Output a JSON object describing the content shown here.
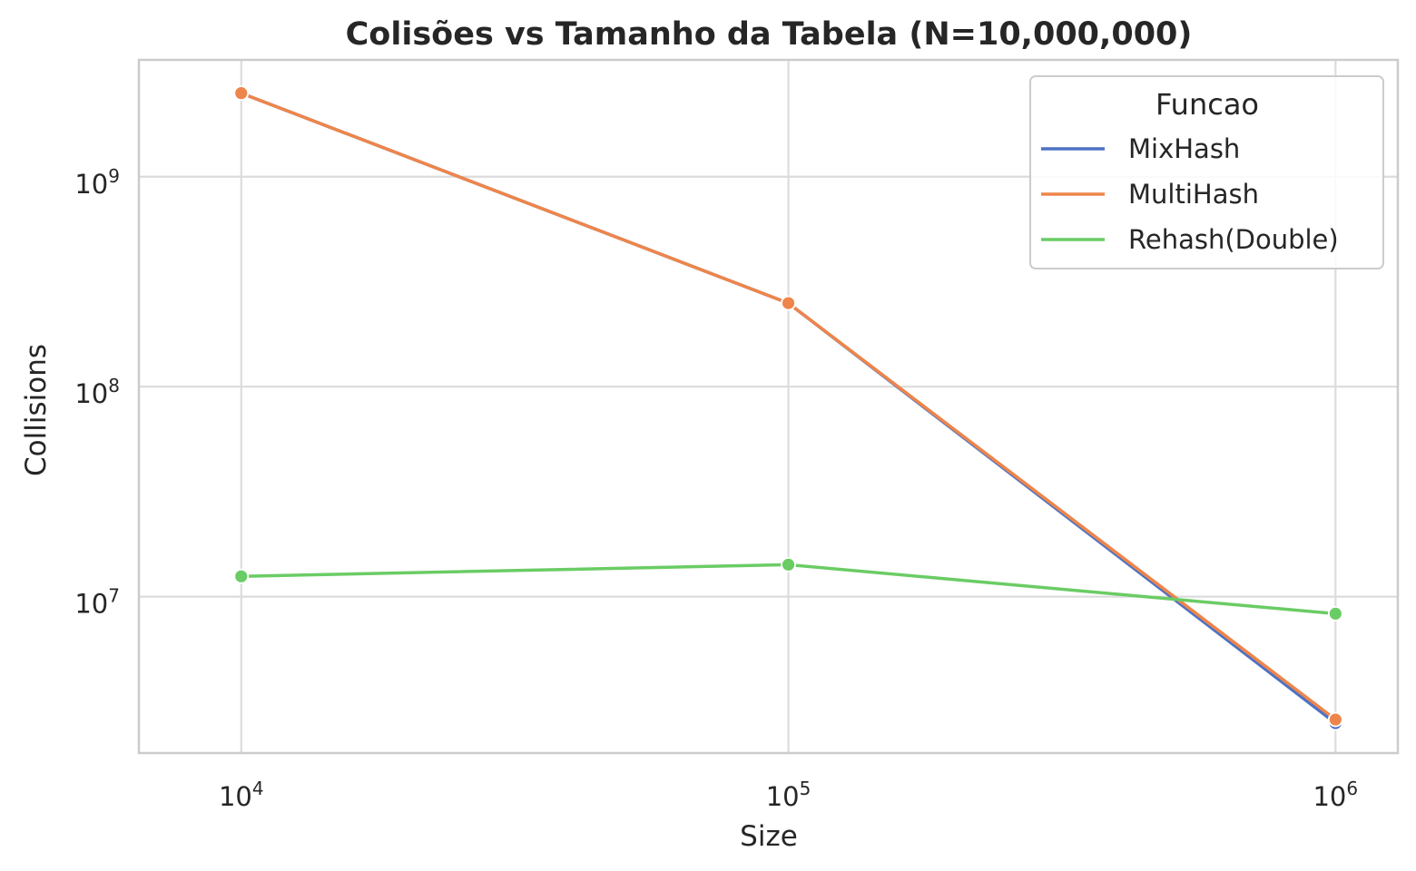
{
  "chart_data": {
    "type": "line",
    "title": "Colisões vs Tamanho da Tabela (N=10,000,000)",
    "xlabel": "Size",
    "ylabel": "Collisions",
    "x_scale": "log",
    "y_scale": "log",
    "x": [
      10000,
      100000,
      1000000
    ],
    "xlim": [
      6500,
      1300000
    ],
    "ylim": [
      1800000,
      3600000000
    ],
    "x_ticks": [
      {
        "value": 10000,
        "base": "10",
        "exp": "4"
      },
      {
        "value": 100000,
        "base": "10",
        "exp": "5"
      },
      {
        "value": 1000000,
        "base": "10",
        "exp": "6"
      }
    ],
    "y_ticks": [
      {
        "value": 10000000,
        "base": "10",
        "exp": "7"
      },
      {
        "value": 100000000,
        "base": "10",
        "exp": "8"
      },
      {
        "value": 1000000000,
        "base": "10",
        "exp": "9"
      }
    ],
    "grid": true,
    "legend": {
      "title": "Funcao",
      "placement": "top-right"
    },
    "series": [
      {
        "name": "MixHash",
        "color": "#4c72c4",
        "values": [
          2500000000,
          250000000,
          2500000
        ]
      },
      {
        "name": "MultiHash",
        "color": "#ee854a",
        "values": [
          2500000000,
          250000000,
          2600000
        ]
      },
      {
        "name": "Rehash(Double)",
        "color": "#6acc64",
        "values": [
          12500000,
          14200000,
          8300000
        ]
      }
    ]
  }
}
